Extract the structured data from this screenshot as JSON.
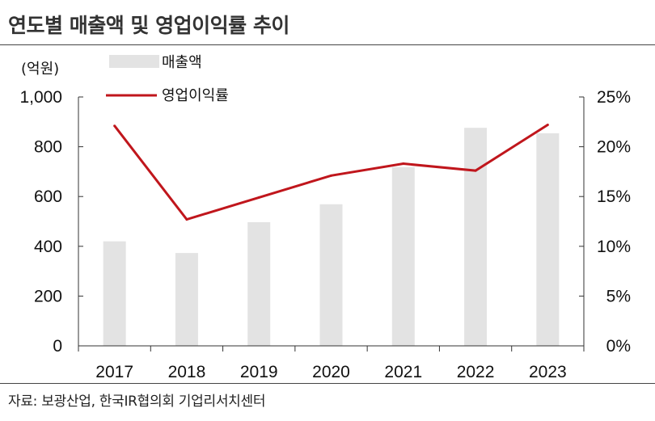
{
  "title": "연도별 매출액 및 영업이익률 추이",
  "source": "자료: 보광산업, 한국IR협의회 기업리서치센터",
  "colors": {
    "bar": "#e3e3e3",
    "line": "#c0161c",
    "axis": "#333333"
  },
  "chart_data": {
    "type": "bar",
    "categories": [
      "2017",
      "2018",
      "2019",
      "2020",
      "2021",
      "2022",
      "2023"
    ],
    "series": [
      {
        "name": "매출액",
        "type": "bar",
        "axis": "left",
        "values": [
          420,
          373,
          497,
          569,
          718,
          876,
          854
        ]
      },
      {
        "name": "영업이익률",
        "type": "line",
        "axis": "right",
        "values": [
          22.1,
          12.7,
          14.9,
          17.1,
          18.3,
          17.6,
          22.2
        ]
      }
    ],
    "y_left": {
      "unit_label": "(억원)",
      "ylim": [
        0,
        1000
      ],
      "ticks": [
        "0",
        "200",
        "400",
        "600",
        "800",
        "1,000"
      ]
    },
    "y_right": {
      "ylim": [
        0,
        25
      ],
      "ticks": [
        "0%",
        "5%",
        "10%",
        "15%",
        "20%",
        "25%"
      ]
    },
    "legend_position": "top-left",
    "grid": false
  }
}
